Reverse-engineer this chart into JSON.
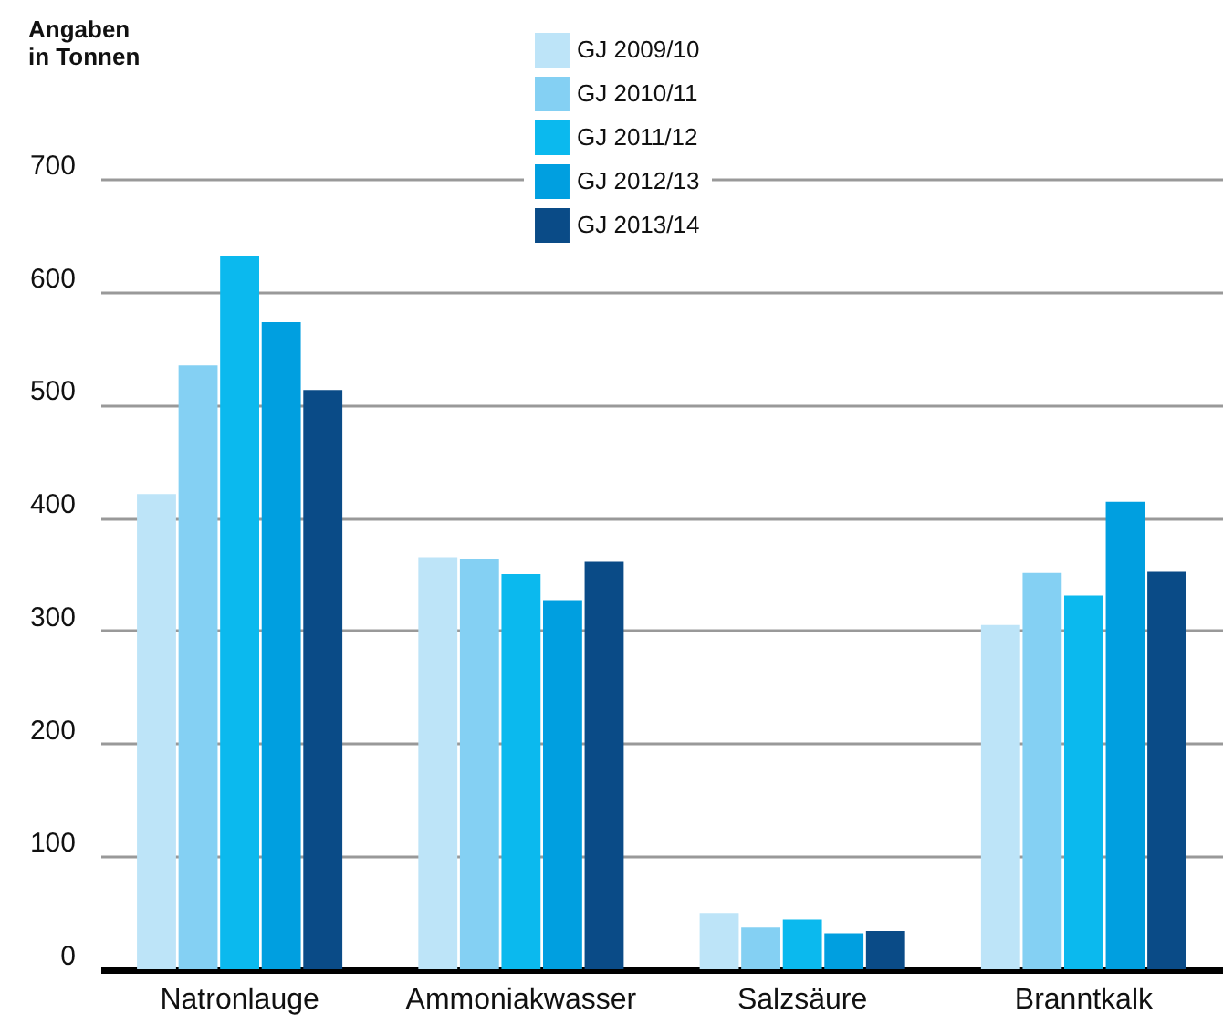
{
  "chart_data": {
    "type": "bar",
    "ylabel": "Angaben in Tonnen",
    "categories": [
      "Natronlauge",
      "Ammoniakwasser",
      "Salzsäure",
      "Branntkalk"
    ],
    "series": [
      {
        "name": "GJ 2009/10",
        "color": "#bde4f8",
        "values": [
          421,
          365,
          50,
          305
        ]
      },
      {
        "name": "GJ 2010/11",
        "color": "#84d0f3",
        "values": [
          535,
          363,
          37,
          351
        ]
      },
      {
        "name": "GJ 2011/12",
        "color": "#0bb9ee",
        "values": [
          632,
          350,
          44,
          331
        ]
      },
      {
        "name": "GJ 2012/13",
        "color": "#009fe0",
        "values": [
          573,
          327,
          32,
          414
        ]
      },
      {
        "name": "GJ 2013/14",
        "color": "#0a4b87",
        "values": [
          513,
          361,
          34,
          352
        ]
      }
    ],
    "ylim": [
      0,
      700
    ],
    "yticks": [
      0,
      100,
      200,
      300,
      400,
      500,
      600,
      700
    ],
    "grid": "y",
    "legend": "top"
  }
}
